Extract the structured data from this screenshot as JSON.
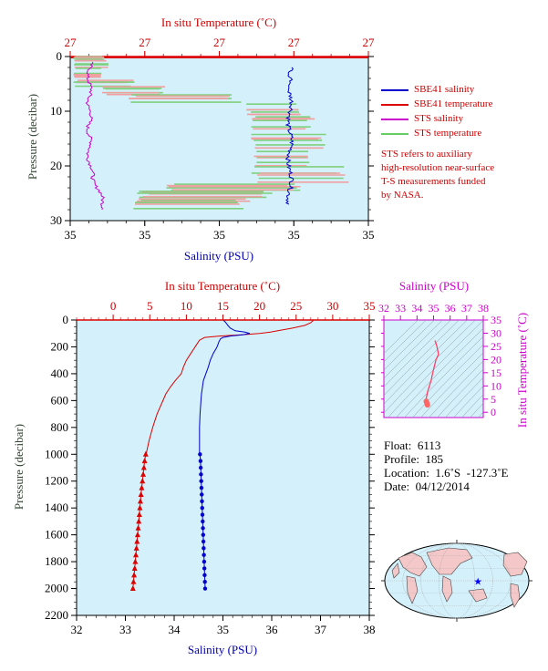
{
  "chart_data": [
    {
      "type": "line",
      "panel": "near-surface profile",
      "top_axis_label": "In situ Temperature (˚C)",
      "top_ticks": [
        "27",
        "27",
        "27",
        "27",
        "27"
      ],
      "bottom_axis_label": "Salinity (PSU)",
      "bottom_ticks": [
        "35",
        "35",
        "35",
        "35",
        "35"
      ],
      "ylabel": "Pressure (decibar)",
      "ylim": [
        0,
        30
      ],
      "y_ticks": [
        0,
        10,
        20,
        30
      ],
      "grid": false,
      "legend": "right",
      "legend_entries": [
        {
          "name": "SBE41 salinity",
          "color": "#0000cc"
        },
        {
          "name": "SBE41 temperature",
          "color": "#dd0000"
        },
        {
          "name": "STS salinity",
          "color": "#cc00cc"
        },
        {
          "name": "STS temperature",
          "color": "#66cc66"
        }
      ],
      "note": [
        "STS refers to auxiliary",
        "high-resolution near-surface",
        "T-S measurements funded",
        "by NASA."
      ],
      "sbe41_temperature_pressure": [
        0,
        1,
        2,
        3,
        4,
        5,
        6,
        7,
        8,
        9,
        10,
        12,
        14,
        16,
        18,
        20,
        22,
        24,
        25,
        26,
        27,
        28
      ]
    },
    {
      "type": "line",
      "panel": "full-depth profile",
      "top_axis_label": "In situ Temperature (˚C)",
      "xlim_temperature": [
        -5,
        35
      ],
      "top_ticks": [
        "0",
        "5",
        "10",
        "15",
        "20",
        "25",
        "30",
        "35"
      ],
      "bottom_axis_label": "Salinity (PSU)",
      "xlim_salinity": [
        32,
        38
      ],
      "bottom_ticks": [
        "32",
        "33",
        "34",
        "35",
        "36",
        "37",
        "38"
      ],
      "ylabel": "Pressure (decibar)",
      "ylim": [
        0,
        2200
      ],
      "y_ticks": [
        "0",
        "200",
        "400",
        "600",
        "800",
        "1000",
        "1200",
        "1400",
        "1600",
        "1800",
        "2000",
        "2200"
      ],
      "grid": false,
      "temperature": {
        "color": "#dd0000",
        "pressure": [
          0,
          5,
          20,
          40,
          60,
          80,
          90,
          100,
          110,
          120,
          130,
          150,
          200,
          250,
          300,
          350,
          400,
          450,
          500,
          550,
          600,
          650,
          700,
          800,
          900,
          1000
        ],
        "values": [
          27.3,
          27.3,
          27.0,
          26.2,
          24.5,
          22.5,
          21.5,
          20.0,
          17.5,
          14.5,
          12.5,
          11.8,
          11.2,
          10.6,
          10.0,
          9.6,
          9.3,
          8.5,
          7.8,
          7.2,
          6.8,
          6.4,
          6.0,
          5.4,
          4.9,
          4.5
        ],
        "marked_pressure": [
          1000,
          1050,
          1100,
          1150,
          1200,
          1250,
          1300,
          1350,
          1400,
          1450,
          1500,
          1550,
          1600,
          1650,
          1700,
          1750,
          1800,
          1850,
          1900,
          1950,
          2000
        ],
        "marked_values": [
          4.45,
          4.3,
          4.2,
          4.1,
          4.0,
          3.9,
          3.8,
          3.72,
          3.65,
          3.58,
          3.5,
          3.42,
          3.34,
          3.26,
          3.18,
          3.1,
          3.02,
          2.94,
          2.86,
          2.78,
          2.7
        ]
      },
      "salinity": {
        "color": "#0000cc",
        "pressure": [
          0,
          5,
          20,
          40,
          60,
          80,
          90,
          100,
          110,
          120,
          130,
          140,
          160,
          200,
          250,
          300,
          350,
          400,
          450,
          500,
          550,
          600,
          700,
          800,
          900,
          1000
        ],
        "values": [
          35.02,
          35.02,
          35.06,
          35.1,
          35.15,
          35.25,
          35.45,
          35.55,
          35.4,
          35.15,
          35.0,
          34.95,
          34.92,
          34.88,
          34.8,
          34.74,
          34.7,
          34.65,
          34.6,
          34.58,
          34.56,
          34.55,
          34.53,
          34.52,
          34.52,
          34.52
        ],
        "marked_pressure": [
          1000,
          1050,
          1100,
          1150,
          1200,
          1250,
          1300,
          1350,
          1400,
          1450,
          1500,
          1550,
          1600,
          1650,
          1700,
          1750,
          1800,
          1850,
          1900,
          1950,
          2000
        ],
        "marked_values": [
          34.53,
          34.54,
          34.545,
          34.55,
          34.555,
          34.56,
          34.565,
          34.57,
          34.575,
          34.58,
          34.585,
          34.59,
          34.595,
          34.6,
          34.605,
          34.61,
          34.615,
          34.62,
          34.625,
          34.63,
          34.635
        ]
      }
    },
    {
      "type": "scatter",
      "panel": "T-S diagram",
      "top_axis_label": "Salinity (PSU)",
      "xlim": [
        32,
        38
      ],
      "x_ticks": [
        "32",
        "33",
        "34",
        "35",
        "36",
        "37",
        "38"
      ],
      "right_axis_label": "In situ Temperature (˚C)",
      "ylim": [
        -2,
        35
      ],
      "y_ticks": [
        "0",
        "5",
        "10",
        "15",
        "20",
        "25",
        "30",
        "35"
      ],
      "grid": false,
      "points": [
        [
          35.1,
          27.0
        ],
        [
          35.2,
          25.0
        ],
        [
          35.3,
          22.0
        ],
        [
          35.15,
          20.0
        ],
        [
          34.95,
          15.0
        ],
        [
          34.85,
          12.0
        ],
        [
          34.75,
          10.0
        ],
        [
          34.65,
          8.0
        ],
        [
          34.58,
          6.0
        ],
        [
          34.55,
          5.0
        ],
        [
          34.56,
          4.2
        ],
        [
          34.6,
          3.5
        ],
        [
          34.63,
          2.8
        ]
      ]
    }
  ],
  "float_info": {
    "float": "Float:  6113",
    "profile": "Profile:  185",
    "location": "Location:  1.6˚S  -127.3˚E",
    "date": "Date:  04/12/2014"
  },
  "map": {
    "marker_longitude": -127.3,
    "marker_latitude": -1.6,
    "marker_color": "#0000ff"
  },
  "colors": {
    "temperature": "#dd0000",
    "salinity": "#0000cc",
    "ts_axes": "#cc00cc",
    "pressure_label": "#334433",
    "panel_bg": "#d4f0fa"
  }
}
